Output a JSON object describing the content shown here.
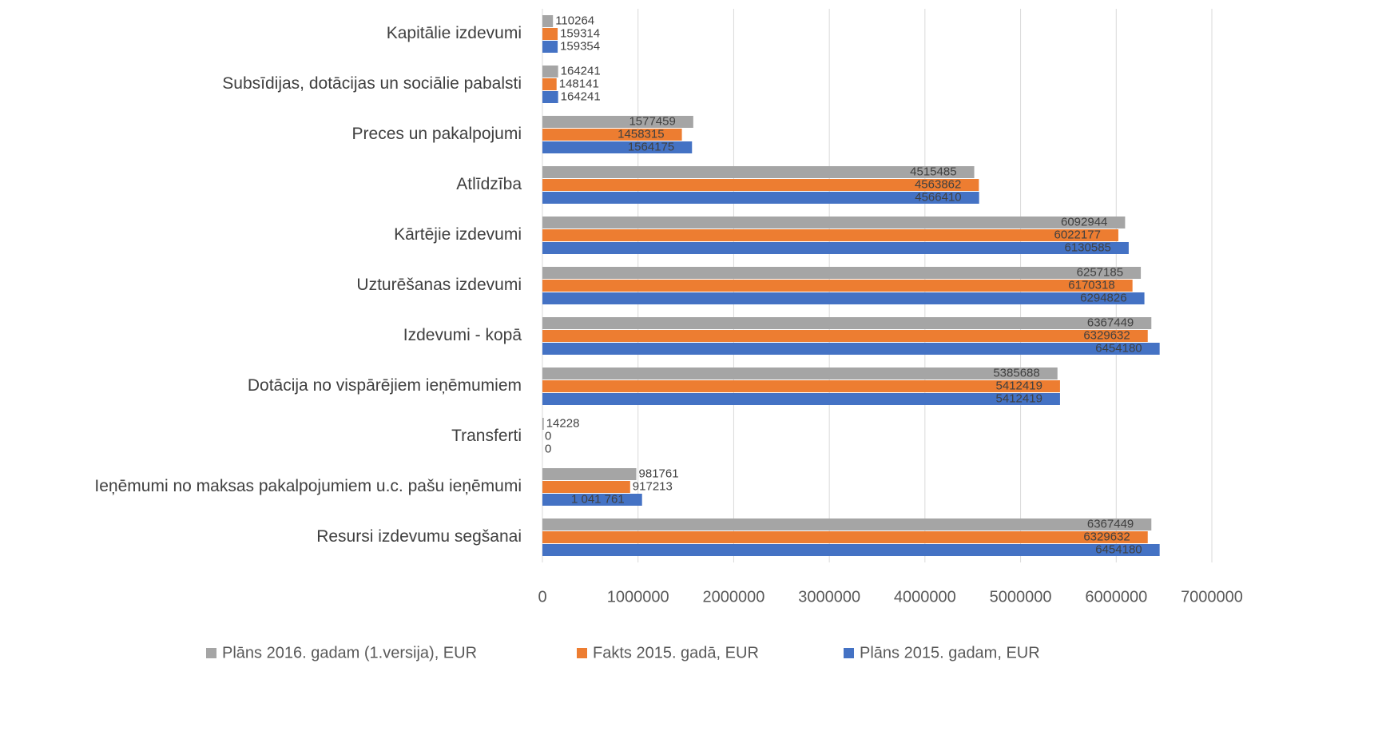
{
  "chart_data": {
    "type": "bar",
    "orientation": "horizontal",
    "categories": [
      "Kapitālie izdevumi",
      "Subsīdijas, dotācijas un sociālie pabalsti",
      "Preces un pakalpojumi",
      "Atlīdzība",
      "Kārtējie izdevumi",
      "Uzturēšanas izdevumi",
      "Izdevumi - kopā",
      "Dotācija no vispārējiem ieņēmumiem",
      "Transferti",
      "Ieņēmumi no maksas pakalpojumiem u.c. pašu ieņēmumi",
      "Resursi izdevumu segšanai"
    ],
    "series": [
      {
        "name": "Plāns 2016. gadam (1.versija), EUR",
        "color": "#a5a5a5",
        "values": [
          110264,
          164241,
          1577459,
          4515485,
          6092944,
          6257185,
          6367449,
          5385688,
          14228,
          981761,
          6367449
        ]
      },
      {
        "name": "Fakts 2015. gadā, EUR",
        "color": "#ed7d31",
        "values": [
          159314,
          148141,
          1458315,
          4563862,
          6022177,
          6170318,
          6329632,
          5412419,
          0,
          917213,
          6329632
        ]
      },
      {
        "name": "Plāns 2015. gadam, EUR",
        "color": "#4472c4",
        "values": [
          159354,
          164241,
          1564175,
          4566410,
          6130585,
          6294826,
          6454180,
          5412419,
          0,
          1041761,
          6454180
        ],
        "value_labels": [
          "159354",
          "164241",
          "1564175",
          "4566410",
          "6130585",
          "6294826",
          "6454180",
          "5412419",
          "0",
          "1 041 761",
          "6454180"
        ]
      }
    ],
    "xlim": [
      0,
      7000000
    ],
    "xticks": [
      0,
      1000000,
      2000000,
      3000000,
      4000000,
      5000000,
      6000000,
      7000000
    ],
    "grid": true,
    "legend": "bottom"
  }
}
